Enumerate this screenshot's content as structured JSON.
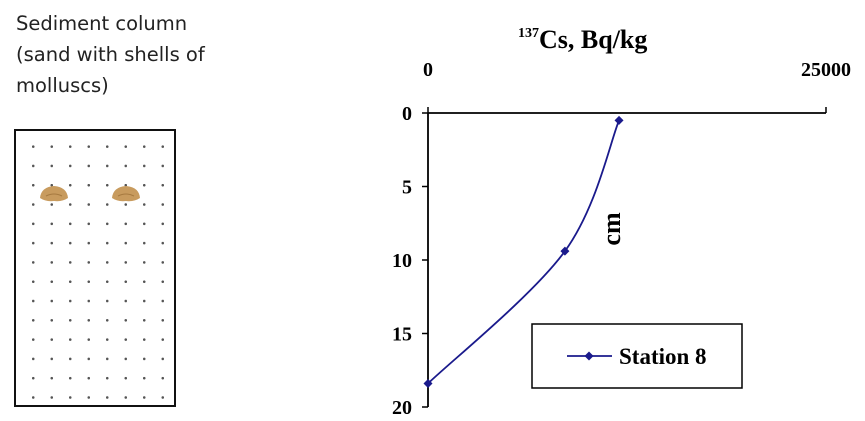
{
  "sediment_column": {
    "label_lines": [
      "Sediment column",
      "(sand with shells of",
      "molluscs)"
    ]
  },
  "chart_data": {
    "type": "line",
    "title_superscript": "137",
    "title_main": "Cs, Bq/kg",
    "xlabel": "137Cs, Bq/kg",
    "ylabel": "cm",
    "xlim": [
      0,
      25000
    ],
    "ylim": [
      0,
      20
    ],
    "x_axis_position": "top",
    "y_axis_inverted": true,
    "x_tick_labels": [
      "0",
      "25000"
    ],
    "x_ticks": [
      0,
      25000
    ],
    "y_ticks": [
      0,
      5,
      10,
      15,
      20
    ],
    "y_tick_labels": [
      "0",
      "5",
      "10",
      "15",
      "20"
    ],
    "grid": false,
    "legend_position": "bottom-right",
    "series": [
      {
        "name": "Station 8",
        "color": "#1a1a8c",
        "marker": "diamond",
        "x": [
          12000,
          8600,
          0
        ],
        "y": [
          0.5,
          9.4,
          18.4
        ]
      }
    ]
  }
}
